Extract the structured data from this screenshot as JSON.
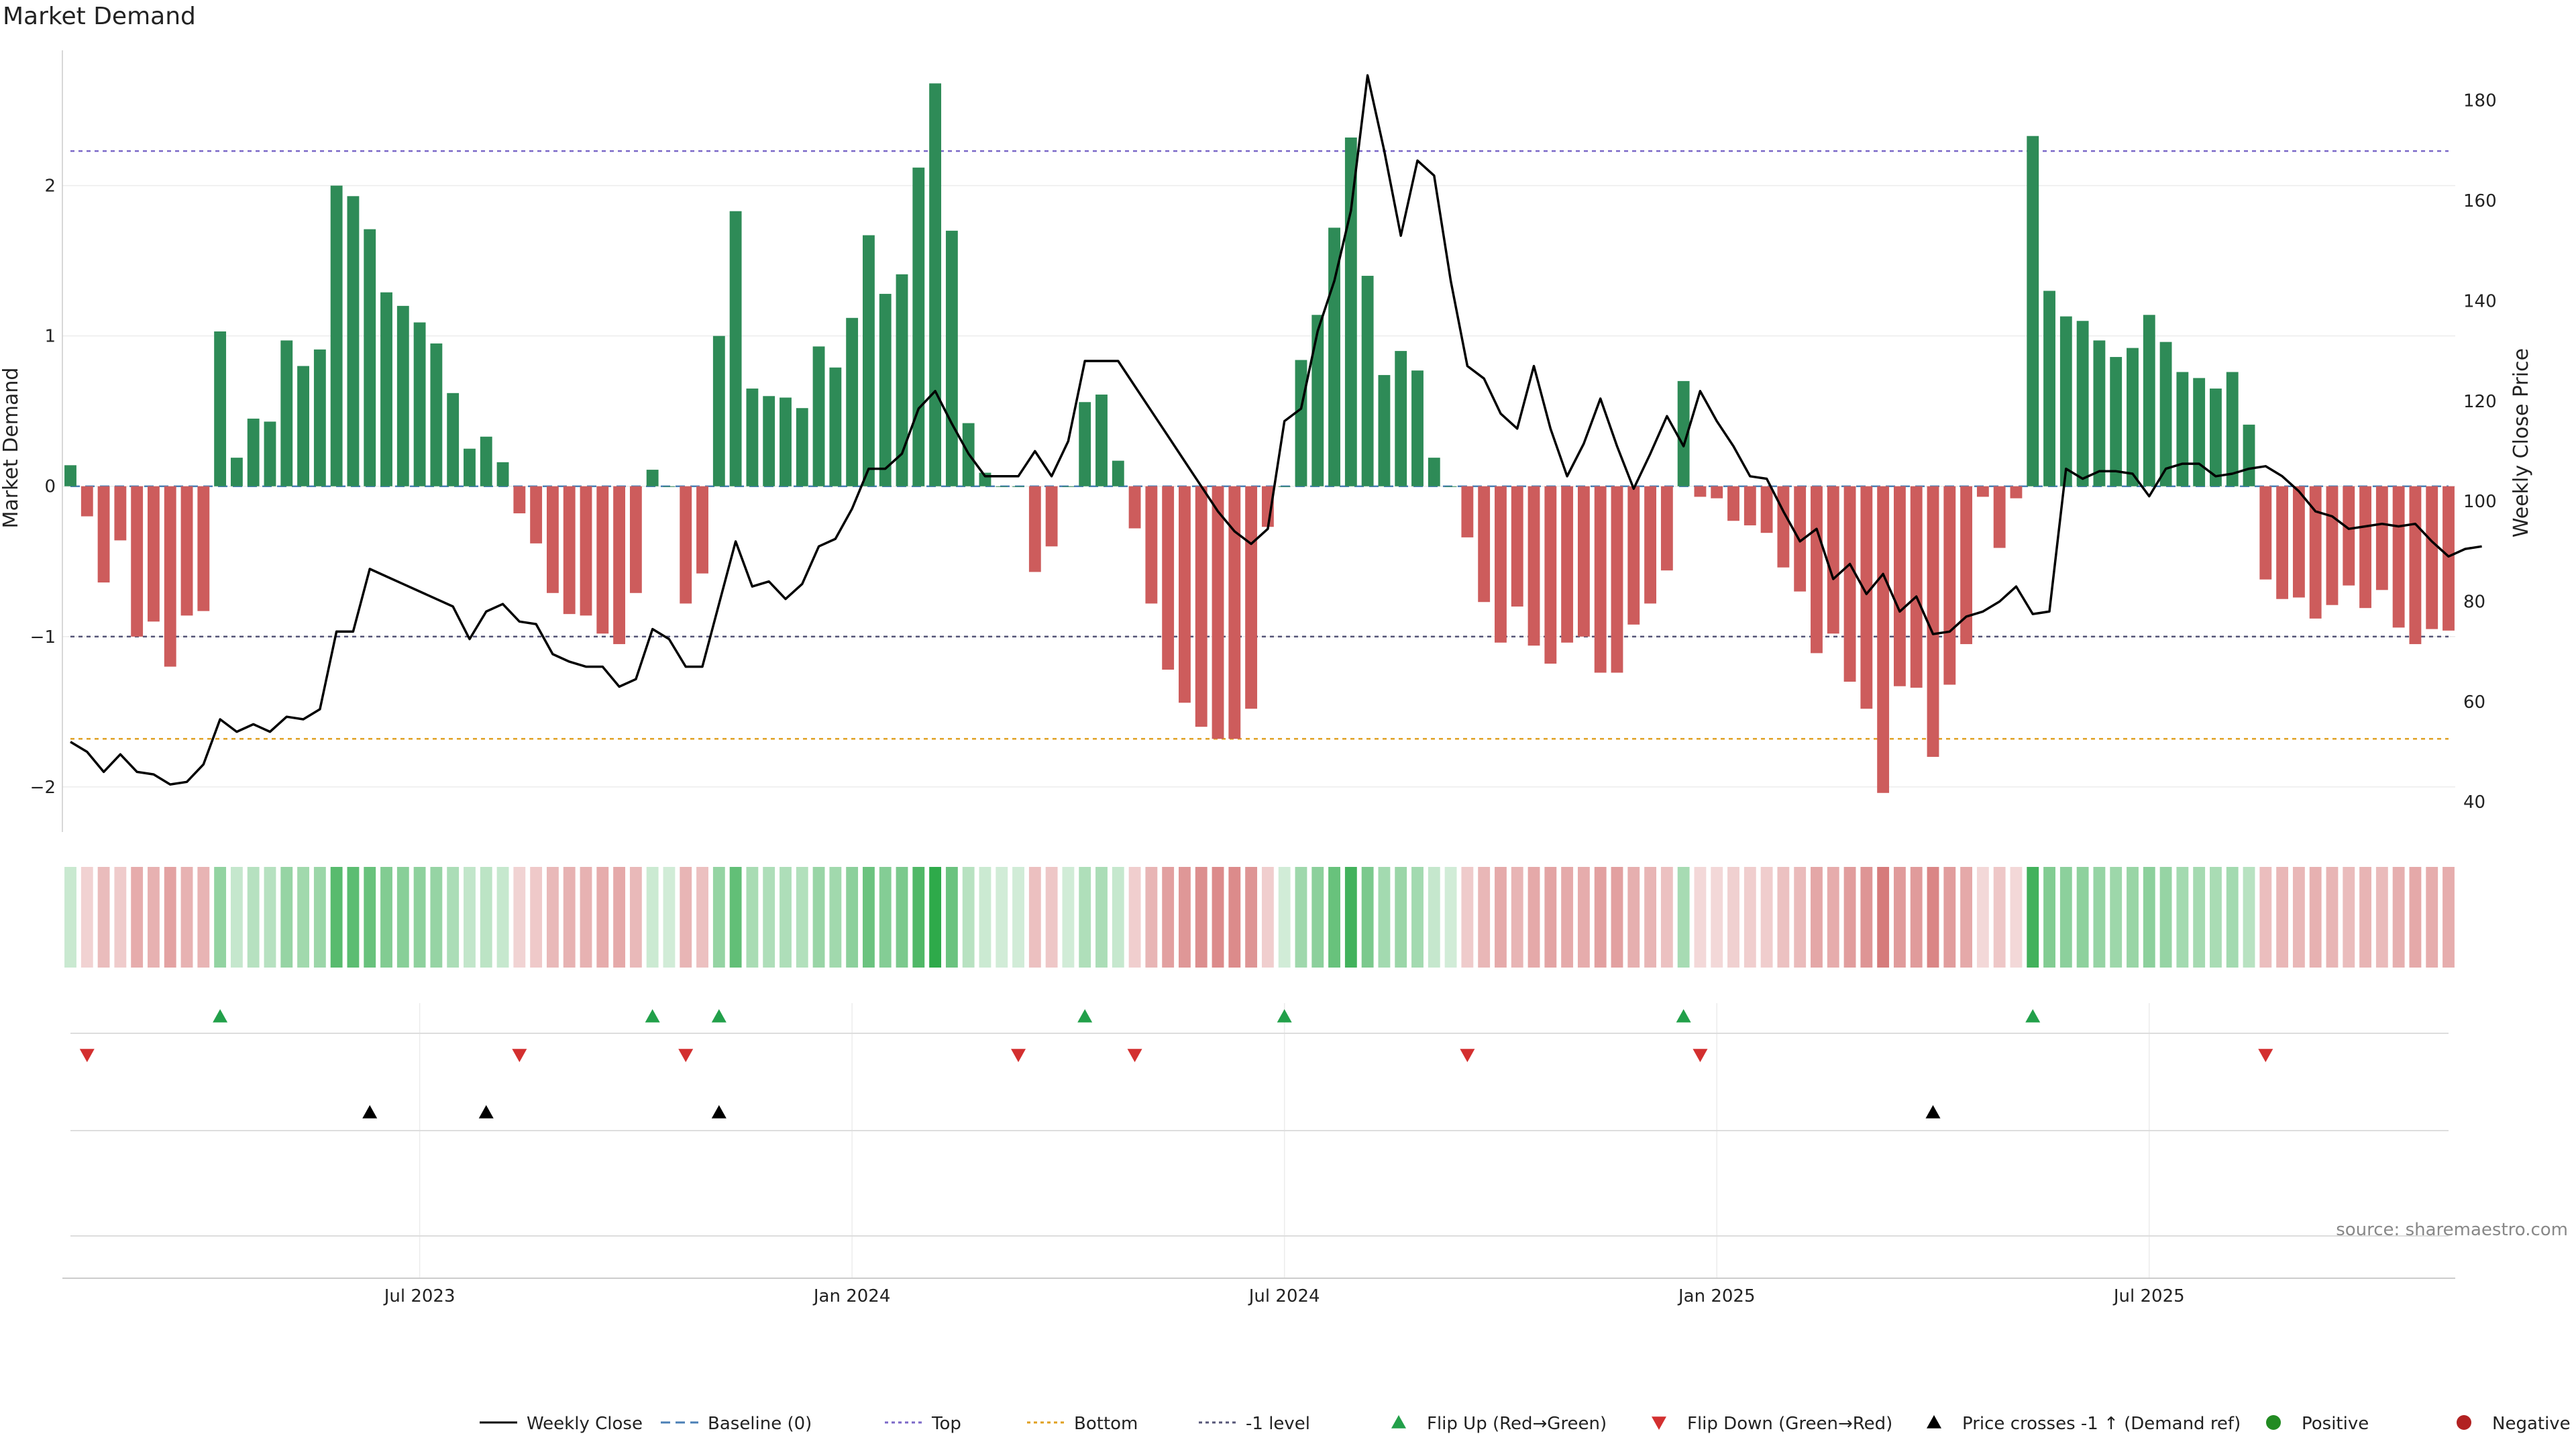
{
  "chart_data": {
    "type": "bar",
    "title": "Market Demand",
    "source": "source: sharemaestro.com",
    "ylabel_left": "Market Demand",
    "ylabel_right": "Weekly Close Price",
    "ylim_left": [
      -2.3,
      2.9
    ],
    "ylim_right": [
      34,
      190
    ],
    "yticks_left": [
      2,
      1,
      0,
      -1,
      -2
    ],
    "yticks_left_labels": [
      "2",
      "1",
      "0",
      "−1",
      "−2"
    ],
    "yticks_right": [
      180,
      160,
      140,
      120,
      100,
      80,
      60,
      40
    ],
    "yticks_right_labels": [
      "180",
      "160",
      "140",
      "120",
      "100",
      "80",
      "60",
      "40"
    ],
    "x_tick_weeks": [
      21,
      47,
      73,
      99,
      125
    ],
    "x_tick_labels": [
      "Jul 2023",
      "Jan 2024",
      "Jul 2024",
      "Jan 2025",
      "Jul 2025"
    ],
    "reference_lines": {
      "top": 2.23,
      "bottom": -1.68,
      "minus_one": -1.0
    },
    "demand": [
      0.14,
      -0.2,
      -0.64,
      -0.36,
      -1.0,
      -0.9,
      -1.2,
      -0.86,
      -0.83,
      1.03,
      0.19,
      0.45,
      0.43,
      0.97,
      0.8,
      0.91,
      2.0,
      1.93,
      1.71,
      1.29,
      1.2,
      1.09,
      0.95,
      0.62,
      0.25,
      0.33,
      0.16,
      -0.18,
      -0.38,
      -0.71,
      -0.85,
      -0.86,
      -0.98,
      -1.05,
      -0.71,
      0.11,
      0.0,
      -0.78,
      -0.58,
      1.0,
      1.83,
      0.65,
      0.6,
      0.59,
      0.52,
      0.93,
      0.79,
      1.12,
      1.67,
      1.28,
      1.41,
      2.12,
      2.68,
      1.7,
      0.42,
      0.09,
      0.0,
      0.0,
      -0.57,
      -0.4,
      0.0,
      0.56,
      0.61,
      0.17,
      -0.28,
      -0.78,
      -1.22,
      -1.44,
      -1.6,
      -1.68,
      -1.68,
      -1.48,
      -0.27,
      0.0,
      0.84,
      1.14,
      1.72,
      2.32,
      1.4,
      0.74,
      0.9,
      0.77,
      0.19,
      0.0,
      -0.34,
      -0.77,
      -1.04,
      -0.8,
      -1.06,
      -1.18,
      -1.04,
      -1.0,
      -1.24,
      -1.24,
      -0.92,
      -0.78,
      -0.56,
      0.7,
      -0.07,
      -0.08,
      -0.23,
      -0.26,
      -0.31,
      -0.54,
      -0.7,
      -1.11,
      -0.98,
      -1.3,
      -1.48,
      -2.04,
      -1.33,
      -1.34,
      -1.8,
      -1.32,
      -1.05,
      -0.07,
      -0.41,
      -0.08,
      2.33,
      1.3,
      1.13,
      1.1,
      0.97,
      0.86,
      0.92,
      1.14,
      0.96,
      0.76,
      0.72,
      0.65,
      0.76,
      0.41,
      -0.62,
      -0.75,
      -0.74,
      -0.88,
      -0.79,
      -0.66,
      -0.81,
      -0.69,
      -0.94,
      -1.05,
      -0.95,
      -0.96
    ],
    "close": [
      52.0,
      50.0,
      46.0,
      49.5,
      46.0,
      45.5,
      43.5,
      44.0,
      47.5,
      56.5,
      54.0,
      55.5,
      54.0,
      57.0,
      56.5,
      58.5,
      74.0,
      74.0,
      86.5,
      85.0,
      83.5,
      82.0,
      80.5,
      79.0,
      72.5,
      78.0,
      79.5,
      76.0,
      75.5,
      69.5,
      68.0,
      67.0,
      67.0,
      63.0,
      64.5,
      74.5,
      72.5,
      67.0,
      67.0,
      79.5,
      92.0,
      83.0,
      84.0,
      80.5,
      83.5,
      91.0,
      92.5,
      98.5,
      106.5,
      106.5,
      109.5,
      118.5,
      122.0,
      115.5,
      109.5,
      105.0,
      105.0,
      105.0,
      110.0,
      105.0,
      112.0,
      128.0,
      128.0,
      128.0,
      123.0,
      118.0,
      113.0,
      108.0,
      103.0,
      98.0,
      94.0,
      91.5,
      94.5,
      116.0,
      118.5,
      134.0,
      144.0,
      158.0,
      185.0,
      170.0,
      153.0,
      168.0,
      165.0,
      144.0,
      127.0,
      124.5,
      117.5,
      114.5,
      127.0,
      114.5,
      105.0,
      111.5,
      120.5,
      111.0,
      102.5,
      109.5,
      117.0,
      111.0,
      122.0,
      116.0,
      111.0,
      105.0,
      104.5,
      98.0,
      92.0,
      94.5,
      84.5,
      87.5,
      81.5,
      85.5,
      78.0,
      81.0,
      73.5,
      74.0,
      77.0,
      78.0,
      80.0,
      83.0,
      77.5,
      78.0,
      106.5,
      104.5,
      106.0,
      106.0,
      105.5,
      101.0,
      106.5,
      107.5,
      107.5,
      105.0,
      105.5,
      106.5,
      107.0,
      105.0,
      102.0,
      98.0,
      97.0,
      94.5,
      95.0,
      95.5,
      95.0,
      95.5,
      92.0,
      89.0,
      90.5,
      91.0
    ],
    "heat_strip": {
      "description": "intensity strip mirroring demand",
      "positive_color": "#2eaa4a",
      "negative_color": "#cd5c5c"
    },
    "event_rows": {
      "flip_up_weeks": [
        9,
        35,
        39,
        61,
        73,
        97,
        118
      ],
      "flip_down_weeks": [
        1,
        27,
        37,
        57,
        64,
        84,
        98,
        132
      ],
      "price_cross_weeks": [
        18,
        25,
        39,
        112
      ],
      "positive_weeks": [],
      "negative_weeks": []
    },
    "legend": [
      {
        "label": "Weekly Close",
        "kind": "solid-line",
        "color": "#000000"
      },
      {
        "label": "Baseline (0)",
        "kind": "dash-line",
        "color": "#4a7fb5"
      },
      {
        "label": "Top",
        "kind": "dot-line",
        "color": "#7b68c8"
      },
      {
        "label": "Bottom",
        "kind": "dot-line",
        "color": "#e0a020"
      },
      {
        "label": "-1 level",
        "kind": "dot-line",
        "color": "#555577"
      },
      {
        "label": "Flip Up (Red→Green)",
        "kind": "triangle-up",
        "color": "#22a04a"
      },
      {
        "label": "Flip Down (Green→Red)",
        "kind": "triangle-down",
        "color": "#d32f2f"
      },
      {
        "label": "Price crosses -1 ↑ (Demand ref)",
        "kind": "triangle-up",
        "color": "#000000"
      },
      {
        "label": "Positive",
        "kind": "circle",
        "color": "#228b22"
      },
      {
        "label": "Negative",
        "kind": "circle",
        "color": "#b22222"
      }
    ],
    "colors": {
      "positive_bar": "#2e8b57",
      "negative_bar": "#cd5c5c",
      "close_line": "#000000"
    }
  }
}
